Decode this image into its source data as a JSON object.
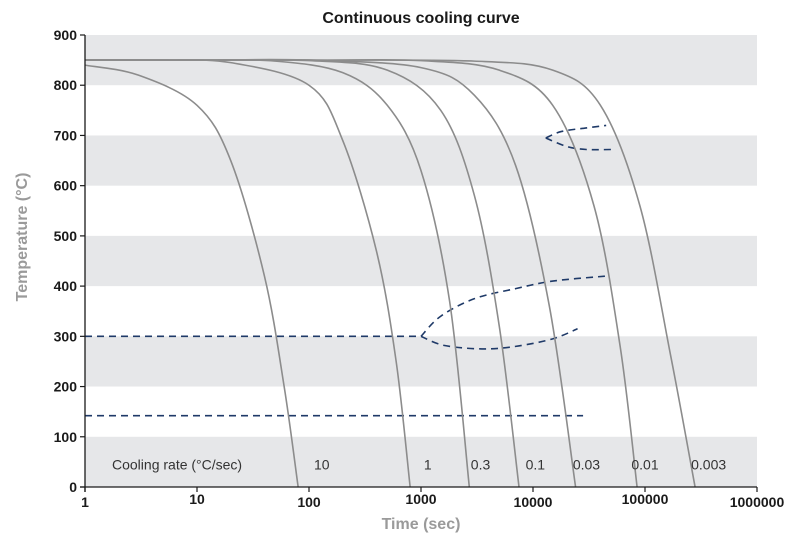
{
  "chart_data": {
    "type": "line",
    "title": "Continuous cooling curve",
    "xlabel": "Time (sec)",
    "ylabel": "Temperature (°C)",
    "x_scale": "log",
    "xlim": [
      1,
      1000000
    ],
    "ylim": [
      0,
      900
    ],
    "x_ticks": [
      "1",
      "10",
      "100",
      "1000",
      "10000",
      "100000",
      "1000000"
    ],
    "y_ticks": [
      "0",
      "100",
      "200",
      "300",
      "400",
      "500",
      "600",
      "700",
      "800",
      "900"
    ],
    "grid": "alternating horizontal bands",
    "rate_caption": "Cooling rate (°C/sec)",
    "cooling_curves": [
      {
        "rate": "10",
        "x": [
          1,
          3,
          10,
          20,
          40,
          60,
          80
        ],
        "y": [
          840,
          820,
          760,
          650,
          420,
          200,
          0
        ]
      },
      {
        "rate": "1",
        "x": [
          1,
          5,
          20,
          100,
          200,
          400,
          600,
          800
        ],
        "y": [
          850,
          850,
          845,
          800,
          690,
          470,
          250,
          0
        ]
      },
      {
        "rate": "0.3",
        "x": [
          1,
          10,
          50,
          200,
          500,
          1000,
          1800,
          2700
        ],
        "y": [
          850,
          850,
          848,
          825,
          760,
          630,
          370,
          0
        ]
      },
      {
        "rate": "0.1",
        "x": [
          1,
          10,
          100,
          500,
          1500,
          3000,
          5000,
          7500
        ],
        "y": [
          850,
          850,
          849,
          830,
          750,
          580,
          320,
          0
        ]
      },
      {
        "rate": "0.03",
        "x": [
          1,
          10,
          100,
          1000,
          3000,
          7000,
          14000,
          24000
        ],
        "y": [
          850,
          850,
          850,
          835,
          780,
          640,
          360,
          0
        ]
      },
      {
        "rate": "0.01",
        "x": [
          1,
          100,
          1000,
          5000,
          15000,
          35000,
          60000,
          85000
        ],
        "y": [
          850,
          850,
          849,
          830,
          760,
          560,
          280,
          0
        ]
      },
      {
        "rate": "0.003",
        "x": [
          1,
          100,
          3000,
          15000,
          40000,
          90000,
          170000,
          280000
        ],
        "y": [
          850,
          850,
          848,
          830,
          760,
          560,
          260,
          0
        ]
      }
    ],
    "rate_label_x": [
      130,
      1150,
      3400,
      10500,
      30000,
      100000,
      370000
    ],
    "rate_label_y": 45,
    "transformation_lines": [
      {
        "x": [
          1,
          1000
        ],
        "y": [
          300,
          300
        ]
      },
      {
        "x": [
          1000,
          1500,
          3000,
          7000,
          15000,
          45000
        ],
        "y": [
          300,
          340,
          375,
          395,
          410,
          420
        ]
      },
      {
        "x": [
          1000,
          1600,
          3500,
          7000,
          15000,
          25000
        ],
        "y": [
          300,
          282,
          275,
          280,
          295,
          315
        ]
      },
      {
        "x": [
          1,
          28000
        ],
        "y": [
          142,
          142
        ]
      },
      {
        "x": [
          13000,
          18000,
          30000,
          45000
        ],
        "y": [
          695,
          708,
          715,
          720
        ]
      },
      {
        "x": [
          13000,
          20000,
          30000,
          50000
        ],
        "y": [
          695,
          678,
          672,
          672
        ]
      }
    ],
    "colors": {
      "curve": "#8c8c8c",
      "transformation": "#1f3a68",
      "band": "#e6e7e9",
      "axis": "#1a1a1a"
    }
  }
}
